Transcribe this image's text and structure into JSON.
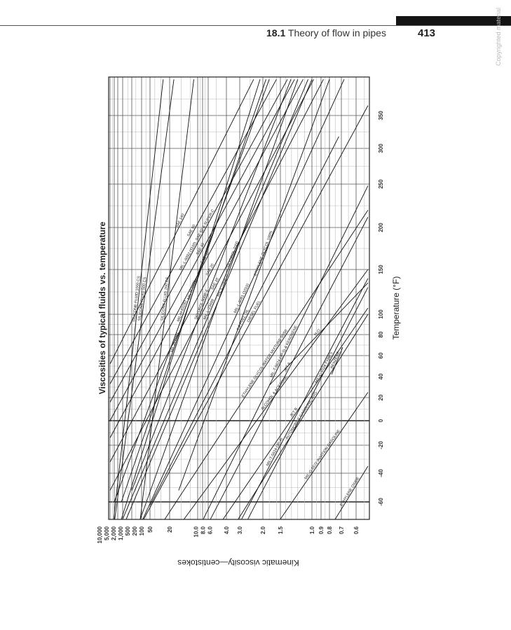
{
  "header": {
    "section_number": "18.1",
    "section_title": "Theory of flow in pipes",
    "page_number": "413",
    "watermark": "Copyrighted material"
  },
  "chart_data": {
    "type": "line",
    "title": "Viscosities of typical fluids vs. temperature",
    "xlabel": "Temperature (°F)",
    "ylabel": "Kinematic viscosity—centistokes",
    "orientation": "rotated 90° counter-clockwise on page",
    "y_scale": "ASTM log-log viscosity scale",
    "grid": true,
    "xlim": [
      -72,
      405
    ],
    "ylim": [
      0.53,
      10000
    ],
    "x_ticks": [
      {
        "value": -60,
        "label": "-60"
      },
      {
        "value": -40,
        "label": "-40"
      },
      {
        "value": -20,
        "label": "-20"
      },
      {
        "value": 0,
        "label": "0"
      },
      {
        "value": 20,
        "label": "20"
      },
      {
        "value": 40,
        "label": "40"
      },
      {
        "value": 60,
        "label": "60"
      },
      {
        "value": 80,
        "label": "80"
      },
      {
        "value": 100,
        "label": "100"
      },
      {
        "value": 150,
        "label": "150"
      },
      {
        "value": 200,
        "label": "200"
      },
      {
        "value": 250,
        "label": "250"
      },
      {
        "value": 300,
        "label": "300"
      },
      {
        "value": 350,
        "label": "350"
      }
    ],
    "y_ticks": [
      {
        "value": 10000,
        "label": "10,000"
      },
      {
        "value": 5000,
        "label": "5,000"
      },
      {
        "value": 2000,
        "label": "2,000"
      },
      {
        "value": 1000,
        "label": "1,000"
      },
      {
        "value": 500,
        "label": "500"
      },
      {
        "value": 200,
        "label": "200"
      },
      {
        "value": 100,
        "label": "100"
      },
      {
        "value": 50,
        "label": "50"
      },
      {
        "value": 20,
        "label": "20"
      },
      {
        "value": 10,
        "label": "10.0"
      },
      {
        "value": 8,
        "label": "8.0"
      },
      {
        "value": 6,
        "label": "6.0"
      },
      {
        "value": 4,
        "label": "4.0"
      },
      {
        "value": 3,
        "label": "3.0"
      },
      {
        "value": 2,
        "label": "2.0"
      },
      {
        "value": 1.5,
        "label": "1.5"
      },
      {
        "value": 1.0,
        "label": "1.0"
      },
      {
        "value": 0.9,
        "label": "0.9"
      },
      {
        "value": 0.8,
        "label": "0.8"
      },
      {
        "value": 0.7,
        "label": "0.7"
      },
      {
        "value": 0.6,
        "label": "0.6"
      }
    ],
    "series": [
      {
        "name": "SILICONE FLUID 1000 CS",
        "points": [
          [
            -72,
            2300
          ],
          [
            405,
            27
          ]
        ]
      },
      {
        "name": "SILICONE FLUID 500 CS",
        "points": [
          [
            -72,
            1800
          ],
          [
            405,
            18
          ]
        ]
      },
      {
        "name": "SILICONE FLUID 200 CS",
        "points": [
          [
            -72,
            110
          ],
          [
            405,
            11
          ]
        ]
      },
      {
        "name": "SAE 140",
        "points": [
          [
            52,
            5000
          ],
          [
            405,
            2.35
          ]
        ]
      },
      {
        "name": "SAE 90",
        "points": [
          [
            33,
            5000
          ],
          [
            405,
            1.6
          ]
        ]
      },
      {
        "name": "MIL-L-6082 (1100), SAE 50 & SUPER-C",
        "points": [
          [
            16,
            5000
          ],
          [
            405,
            1.37
          ]
        ]
      },
      {
        "name": "SAE 40",
        "points": [
          [
            0,
            5000
          ],
          [
            405,
            1.25
          ]
        ]
      },
      {
        "name": "SAE 30",
        "points": [
          [
            -14,
            5000
          ],
          [
            405,
            1.12
          ]
        ]
      },
      {
        "name": "SAE 20",
        "points": [
          [
            -32,
            5000
          ],
          [
            405,
            0.98
          ]
        ]
      },
      {
        "name": "SAE 10",
        "points": [
          [
            -52,
            5000
          ],
          [
            405,
            0.87
          ]
        ]
      },
      {
        "name": "MIL-L-6081 (1010)",
        "points": [
          [
            -72,
            90
          ],
          [
            405,
            0.68
          ]
        ]
      },
      {
        "name": "MIL-L-23699",
        "points": [
          [
            -72,
            500
          ],
          [
            405,
            1.05
          ]
        ]
      },
      {
        "name": "MIL-L-7808",
        "points": [
          [
            -72,
            350
          ],
          [
            405,
            1.0
          ]
        ]
      },
      {
        "name": "MIL-H-5606",
        "points": [
          [
            -60,
            600
          ],
          [
            405,
            1.9
          ]
        ]
      },
      {
        "name": "MIL-H-83282",
        "points": [
          [
            -60,
            2000
          ],
          [
            405,
            1.8
          ]
        ]
      },
      {
        "name": "MIL-H-6083",
        "points": [
          [
            -72,
            600
          ],
          [
            405,
            2.1
          ]
        ]
      },
      {
        "name": "SKYDROL 7000",
        "points": [
          [
            -72,
            110
          ],
          [
            405,
            1.2
          ]
        ]
      },
      {
        "name": "SKYDROL 500B-4",
        "points": [
          [
            -52,
            200
          ],
          [
            405,
            1.31
          ]
        ]
      },
      {
        "name": "# 4 FUEL OIL",
        "points": [
          [
            -62,
            49
          ],
          [
            318,
            0.72
          ]
        ]
      },
      {
        "name": "ETHYLENE GLYCOL WATER MIXTURE 50/50",
        "points": [
          [
            -72,
            25
          ],
          [
            220,
            0.53
          ]
        ]
      },
      {
        "name": "ETHYLENE GLYCOL 100%",
        "points": [
          [
            -52,
            16
          ],
          [
            405,
            0.8
          ]
        ]
      },
      {
        "name": "DIESEL FUEL",
        "points": [
          [
            -72,
            84
          ],
          [
            365,
            0.53
          ]
        ]
      },
      {
        "name": "MIL-T-5624 (JP-5) & KEROSENE",
        "points": [
          [
            -72,
            7.7
          ],
          [
            248,
            0.53
          ]
        ]
      },
      {
        "name": "JET A",
        "points": [
          [
            -72,
            5.7
          ],
          [
            212,
            0.53
          ]
        ]
      },
      {
        "name": "JET B",
        "points": [
          [
            -72,
            4.3
          ],
          [
            107,
            0.53
          ]
        ]
      },
      {
        "name": "ALCOHOL & ACETONE",
        "points": [
          [
            -72,
            14
          ],
          [
            150,
            0.53
          ]
        ]
      },
      {
        "name": "AUTOMOBILE GASOLINE, AVG",
        "points": [
          [
            -72,
            3.1
          ],
          [
            100,
            0.53
          ]
        ]
      },
      {
        "name": "MIL-C-1024 TYPE II",
        "points": [
          [
            -72,
            2.6
          ],
          [
            130,
            0.53
          ]
        ]
      },
      {
        "name": "MIL-T-5624 (JP-4)",
        "points": [
          [
            -72,
            2.9
          ],
          [
            140,
            0.53
          ]
        ]
      },
      {
        "name": "MIL-G-5572 AVIATION GASOLINE",
        "points": [
          [
            -72,
            1.5
          ],
          [
            25,
            0.53
          ]
        ]
      },
      {
        "name": "BENZENE",
        "points": [
          [
            42,
            0.78
          ],
          [
            68,
            0.69
          ]
        ]
      },
      {
        "name": "H₂O",
        "points": [
          [
            32,
            1.79
          ],
          [
            135,
            0.53
          ]
        ]
      },
      {
        "name": "ETHYLENE OXIDE",
        "points": [
          [
            -72,
            0.75
          ],
          [
            -35,
            0.53
          ]
        ]
      }
    ]
  }
}
